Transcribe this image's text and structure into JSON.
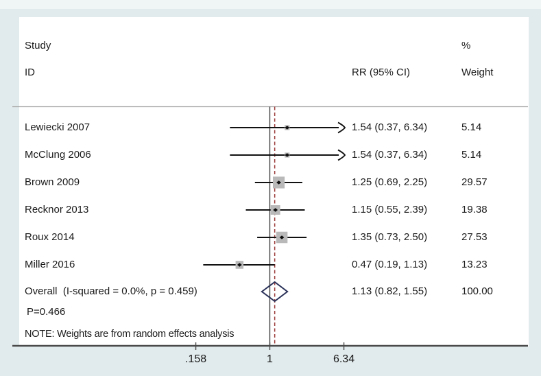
{
  "header": {
    "study": "Study",
    "id": "ID",
    "percent": "%",
    "rr_ci": "RR (95% CI)",
    "weight": "Weight"
  },
  "annotations": {
    "p_label": "P=0.466",
    "note": "NOTE: Weights are from random effects analysis"
  },
  "colors": {
    "background": "#e1eaec",
    "top_band": "#f0f5f5",
    "panel": "#ffffff",
    "separator_line": "#a6a6a6",
    "axis_line": "#4a4a4a",
    "null_line": "#3f3f3f",
    "overall_dashed_line": "#9b3a3a",
    "ci_line": "#111111",
    "marker_fill": "#b9b9b9",
    "marker_dot": "#0d0d0d",
    "diamond_stroke": "#2a3158",
    "text": "#1a1a1a"
  },
  "chart_data": {
    "type": "forest",
    "title": "",
    "effect_measure": "RR",
    "log_scale": true,
    "axis": {
      "null_value": 1,
      "overall_line_value": 1.13,
      "ticks": [
        {
          "label": ".158",
          "value": 0.158
        },
        {
          "label": "1",
          "value": 1
        },
        {
          "label": "6.34",
          "value": 6.34
        }
      ]
    },
    "studies": [
      {
        "id": "Lewiecki 2007",
        "rr": 1.54,
        "ci_low": 0.37,
        "ci_high": 6.34,
        "rr_ci_text": "1.54 (0.37, 6.34)",
        "weight": 5.14,
        "weight_text": "5.14",
        "clipped_high": true
      },
      {
        "id": "McClung 2006",
        "rr": 1.54,
        "ci_low": 0.37,
        "ci_high": 6.34,
        "rr_ci_text": "1.54 (0.37, 6.34)",
        "weight": 5.14,
        "weight_text": "5.14",
        "clipped_high": true
      },
      {
        "id": "Brown 2009",
        "rr": 1.25,
        "ci_low": 0.69,
        "ci_high": 2.25,
        "rr_ci_text": "1.25 (0.69, 2.25)",
        "weight": 29.57,
        "weight_text": "29.57",
        "clipped_high": false
      },
      {
        "id": "Recknor 2013",
        "rr": 1.15,
        "ci_low": 0.55,
        "ci_high": 2.39,
        "rr_ci_text": "1.15 (0.55, 2.39)",
        "weight": 19.38,
        "weight_text": "19.38",
        "clipped_high": false
      },
      {
        "id": "Roux 2014",
        "rr": 1.35,
        "ci_low": 0.73,
        "ci_high": 2.5,
        "rr_ci_text": "1.35 (0.73, 2.50)",
        "weight": 27.53,
        "weight_text": "27.53",
        "clipped_high": false
      },
      {
        "id": "Miller 2016",
        "rr": 0.47,
        "ci_low": 0.19,
        "ci_high": 1.13,
        "rr_ci_text": "0.47 (0.19, 1.13)",
        "weight": 13.23,
        "weight_text": "13.23",
        "clipped_high": false
      }
    ],
    "overall": {
      "label": "Overall  (I-squared = 0.0%, p = 0.459)",
      "rr": 1.13,
      "ci_low": 0.82,
      "ci_high": 1.55,
      "rr_ci_text": "1.13 (0.82, 1.55)",
      "weight_text": "100.00"
    }
  }
}
